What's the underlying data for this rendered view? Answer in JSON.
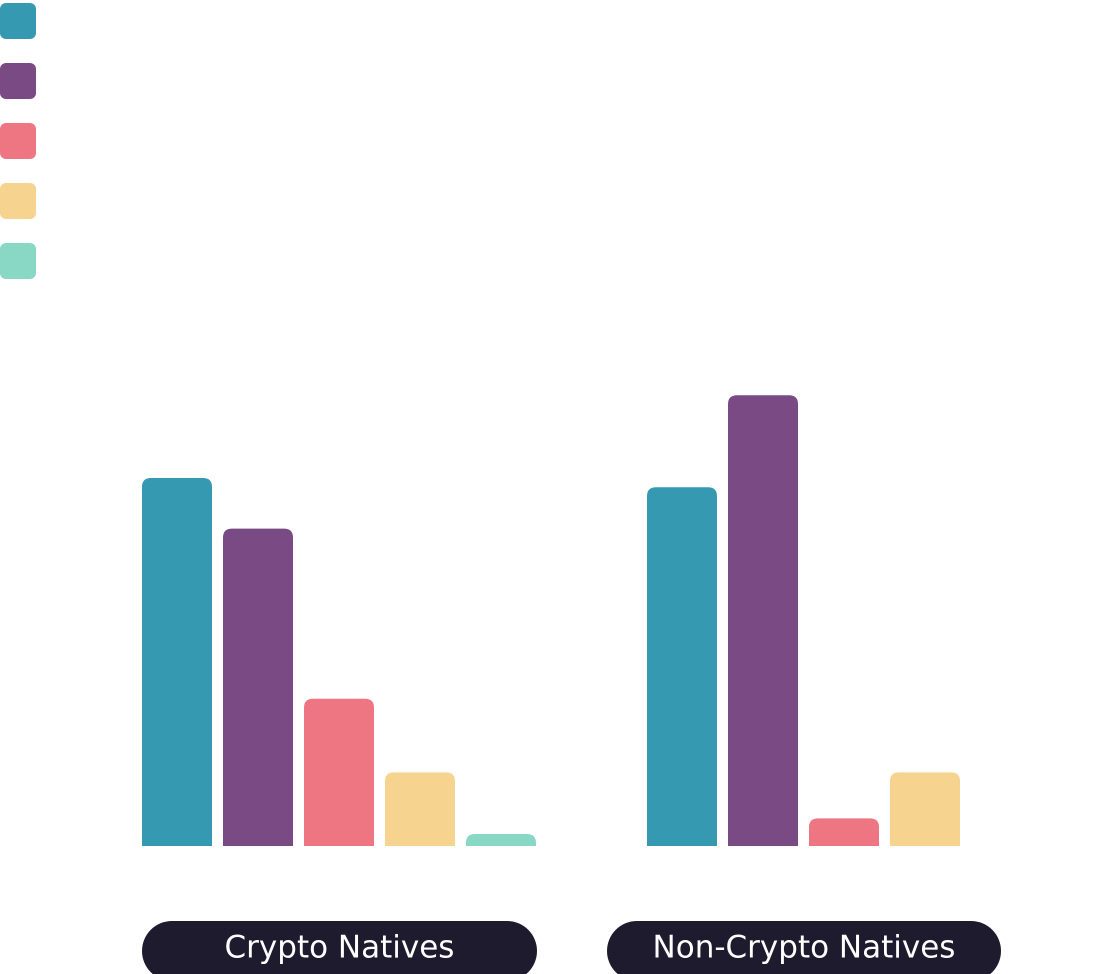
{
  "chart_data": {
    "type": "bar",
    "categories": [
      "Crypto Natives",
      "Non-Crypto Natives"
    ],
    "series": [
      {
        "color": "#3499b1",
        "values": [
          40,
          39
        ]
      },
      {
        "color": "#7a4a85",
        "values": [
          34.5,
          49
        ]
      },
      {
        "color": "#ee7582",
        "values": [
          16,
          3
        ]
      },
      {
        "color": "#f6d38f",
        "values": [
          8,
          8
        ]
      },
      {
        "color": "#88d8c5",
        "values": [
          1.3,
          null
        ]
      }
    ],
    "ylim": [
      0,
      50
    ]
  }
}
